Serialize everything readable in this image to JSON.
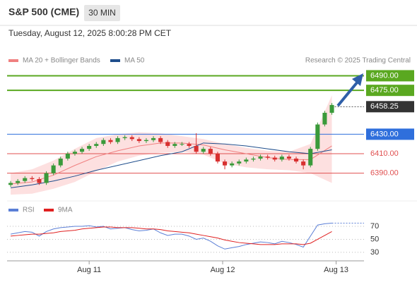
{
  "chart_data": {
    "type": "candlestick",
    "title": "S&P 500 (CME)",
    "interval": "30 MIN",
    "subtitle": "Tuesday, August 12, 2025 8:00:28 PM CET",
    "credit": "Research © 2025 Trading Central",
    "xlim": [
      -0.5,
      49.5
    ],
    "xticks": [
      {
        "value": 11,
        "label": "Aug 11"
      },
      {
        "value": 29.7,
        "label": "Aug 12"
      },
      {
        "value": 45.6,
        "label": "Aug 13"
      }
    ],
    "ylim": [
      6363,
      6499
    ],
    "candles": {
      "up_color": "#3a9a3a",
      "down_color": "#d83030",
      "open": [
        6378,
        6380,
        6382,
        6385,
        6384,
        6380,
        6390,
        6398,
        6405,
        6410,
        6412,
        6415,
        6418,
        6420,
        6424,
        6422,
        6426,
        6427,
        6425,
        6423,
        6424,
        6426,
        6422,
        6418,
        6420,
        6420,
        6418,
        6412,
        6415,
        6410,
        6402,
        6398,
        6400,
        6402,
        6404,
        6405,
        6407,
        6406,
        6404,
        6407,
        6405,
        6402,
        6398,
        6415,
        6440,
        6452
      ],
      "high": [
        6382,
        6384,
        6387,
        6387,
        6386,
        6392,
        6400,
        6407,
        6412,
        6414,
        6417,
        6420,
        6422,
        6426,
        6426,
        6428,
        6429,
        6429,
        6427,
        6426,
        6428,
        6428,
        6424,
        6422,
        6422,
        6422,
        6431,
        6417,
        6417,
        6412,
        6404,
        6402,
        6404,
        6406,
        6407,
        6409,
        6409,
        6408,
        6409,
        6409,
        6407,
        6404,
        6417,
        6442,
        6454,
        6462
      ],
      "low": [
        6376,
        6378,
        6380,
        6382,
        6378,
        6378,
        6388,
        6396,
        6403,
        6408,
        6410,
        6413,
        6416,
        6418,
        6420,
        6420,
        6424,
        6423,
        6421,
        6421,
        6422,
        6420,
        6416,
        6416,
        6418,
        6416,
        6410,
        6410,
        6408,
        6400,
        6394,
        6396,
        6398,
        6400,
        6402,
        6403,
        6404,
        6402,
        6402,
        6403,
        6400,
        6394,
        6396,
        6413,
        6438,
        6450
      ],
      "close": [
        6380,
        6382,
        6385,
        6384,
        6380,
        6390,
        6398,
        6405,
        6410,
        6412,
        6415,
        6418,
        6420,
        6424,
        6422,
        6426,
        6427,
        6425,
        6423,
        6424,
        6426,
        6422,
        6418,
        6420,
        6420,
        6418,
        6412,
        6415,
        6410,
        6402,
        6398,
        6400,
        6402,
        6404,
        6405,
        6407,
        6406,
        6404,
        6407,
        6405,
        6402,
        6398,
        6415,
        6440,
        6452,
        6460
      ]
    },
    "series": [
      {
        "name": "MA 20 + Bollinger Bands",
        "color": "#f08080",
        "band_color": "#fde0e0",
        "x": [
          0,
          3,
          6,
          9,
          12,
          15,
          18,
          21,
          24,
          27,
          30,
          33,
          36,
          39,
          42,
          45
        ],
        "values": [
          6379,
          6381,
          6388,
          6398,
          6407,
          6413,
          6418,
          6421,
          6421,
          6419,
          6414,
          6410,
          6406,
          6404,
          6404,
          6418
        ],
        "upper": [
          6390,
          6394,
          6403,
          6415,
          6426,
          6430,
          6432,
          6431,
          6428,
          6425,
          6420,
          6416,
          6413,
          6412,
          6420,
          6470
        ],
        "lower": [
          6368,
          6369,
          6374,
          6381,
          6392,
          6402,
          6408,
          6411,
          6412,
          6409,
          6400,
          6396,
          6394,
          6393,
          6390,
          6380
        ]
      },
      {
        "name": "MA 50",
        "color": "#1f4e8c",
        "x": [
          0,
          3,
          6,
          9,
          12,
          15,
          18,
          21,
          24,
          27,
          30,
          33,
          36,
          39,
          42,
          45
        ],
        "values": [
          6375,
          6378,
          6382,
          6387,
          6393,
          6398,
          6403,
          6408,
          6412,
          6421,
          6420,
          6418,
          6415,
          6412,
          6410,
          6414
        ]
      }
    ],
    "levels": [
      {
        "value": 6490,
        "label": "6490.00",
        "color": "#5aa820",
        "boxed": true
      },
      {
        "value": 6475,
        "label": "6475.00",
        "color": "#5aa820",
        "boxed": true
      },
      {
        "value": 6430,
        "label": "6430.00",
        "color": "#2f6fdc",
        "boxed": true
      },
      {
        "value": 6410,
        "label": "6410.00",
        "color": "#e05050",
        "boxed": false
      },
      {
        "value": 6390,
        "label": "6390.00",
        "color": "#e05050",
        "boxed": false
      }
    ],
    "last_price": {
      "value": 6458.25,
      "color": "#333333"
    },
    "rsi": {
      "ylim": [
        19,
        82
      ],
      "yticks": [
        30,
        50,
        70
      ],
      "series": [
        {
          "name": "RSI",
          "color": "#5b7fd6",
          "values": [
            58,
            60,
            62,
            61,
            55,
            62,
            66,
            68,
            69,
            70,
            70,
            71,
            69,
            70,
            66,
            67,
            68,
            65,
            63,
            64,
            66,
            60,
            56,
            58,
            58,
            55,
            50,
            52,
            47,
            40,
            35,
            37,
            39,
            42,
            44,
            46,
            45,
            43,
            47,
            45,
            42,
            38,
            55,
            72,
            74,
            75
          ]
        },
        {
          "name": "9MA",
          "color": "#e02020",
          "values": [
            55,
            56,
            57,
            58,
            58,
            59,
            60,
            62,
            63,
            64,
            66,
            67,
            68,
            69,
            69,
            68,
            68,
            68,
            67,
            66,
            66,
            65,
            63,
            62,
            61,
            60,
            58,
            56,
            54,
            52,
            49,
            47,
            45,
            44,
            43,
            42,
            42,
            42,
            43,
            43,
            43,
            42,
            44,
            50,
            56,
            62
          ]
        }
      ]
    }
  }
}
